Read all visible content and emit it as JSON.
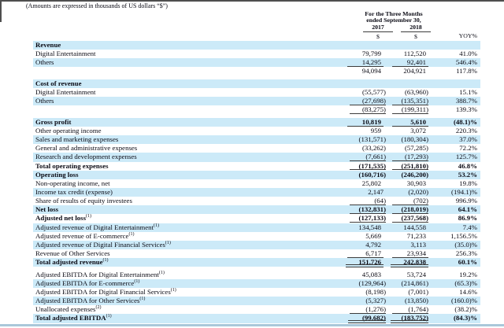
{
  "note": "(Amounts are expressed in thousands of US dollars “$”)",
  "colors": {
    "row_highlight": "#cceaf8",
    "text": "#0a0a14",
    "rule": "#3c3c3c",
    "bottom_strip": "#aac8da",
    "frame": "#4f4f4f"
  },
  "table": {
    "header": {
      "period_line1": "For the Three Months",
      "period_line2": "ended September 30,",
      "year_2017": "2017",
      "year_2018": "2018",
      "currency_2017": "$",
      "currency_2018": "$",
      "yoy": "YOY%"
    },
    "rows": [
      {
        "label": "Revenue",
        "bold": true,
        "bg": "blue"
      },
      {
        "label": "Digital Entertainment",
        "v2017": "79,799",
        "v2018": "112,520",
        "yoy": "41.0%",
        "bg": "white"
      },
      {
        "label": "Others",
        "v2017": "14,295",
        "v2018": "92,401",
        "yoy": "546.4%",
        "bg": "blue",
        "underline": "single"
      },
      {
        "label": "",
        "v2017": "94,094",
        "v2018": "204,921",
        "yoy": "117.8%",
        "bg": "white"
      },
      {
        "label": "Cost of revenue",
        "bold": true,
        "bg": "blue",
        "spacer_before": true
      },
      {
        "label": "Digital Entertainment",
        "v2017": "(55,577)",
        "v2018": "(63,960)",
        "yoy": "15.1%",
        "bg": "white"
      },
      {
        "label": "Others",
        "v2017": "(27,698)",
        "v2018": "(135,351)",
        "yoy": "388.7%",
        "bg": "blue",
        "underline": "single"
      },
      {
        "label": "",
        "v2017": "(83,275)",
        "v2018": "(199,311)",
        "yoy": "139.3%",
        "bg": "white",
        "underline": "single"
      },
      {
        "label": "Gross profit",
        "bold": true,
        "v2017": "10,819",
        "v2018": "5,610",
        "yoy": "(48.1)%",
        "bg": "blue",
        "underline": "single",
        "spacer_before": true
      },
      {
        "label": "Other operating income",
        "v2017": "959",
        "v2018": "3,072",
        "yoy": "220.3%",
        "bg": "white"
      },
      {
        "label": "Sales and marketing expenses",
        "v2017": "(131,571)",
        "v2018": "(180,304)",
        "yoy": "37.0%",
        "bg": "blue"
      },
      {
        "label": "General and administrative expenses",
        "v2017": "(33,262)",
        "v2018": "(57,285)",
        "yoy": "72.2%",
        "bg": "white"
      },
      {
        "label": "Research and development expenses",
        "v2017": "(7,661)",
        "v2018": "(17,293)",
        "yoy": "125.7%",
        "bg": "blue",
        "underline": "single"
      },
      {
        "label": "Total operating expenses",
        "bold": true,
        "v2017": "(171,535)",
        "v2018": "(251,810)",
        "yoy": "46.8%",
        "bg": "white",
        "underline": "single"
      },
      {
        "label": "Operating loss",
        "bold": true,
        "v2017": "(160,716)",
        "v2018": "(246,200)",
        "yoy": "53.2%",
        "bg": "blue"
      },
      {
        "label": "Non-operating income, net",
        "v2017": "25,802",
        "v2018": "30,903",
        "yoy": "19.8%",
        "bg": "white"
      },
      {
        "label": "Income tax credit (expense)",
        "v2017": "2,147",
        "v2018": "(2,020)",
        "yoy": "(194.1)%",
        "bg": "blue"
      },
      {
        "label": "Share of results of equity investees",
        "v2017": "(64)",
        "v2018": "(702)",
        "yoy": "996.9%",
        "bg": "white",
        "underline": "single"
      },
      {
        "label": "Net loss",
        "bold": true,
        "v2017": "(132,831)",
        "v2018": "(218,019)",
        "yoy": "64.1%",
        "bg": "blue",
        "underline": "single"
      },
      {
        "label": "Adjusted net loss",
        "sup": "(1)",
        "bold": true,
        "v2017": "(127,133)",
        "v2018": "(237,568)",
        "yoy": "86.9%",
        "bg": "white",
        "underline": "single"
      },
      {
        "label": "Adjusted revenue of Digital Entertainment",
        "sup": "(1)",
        "v2017": "134,548",
        "v2018": "144,558",
        "yoy": "7.4%",
        "bg": "blue"
      },
      {
        "label": "Adjusted revenue of E-commerce",
        "sup": "(1)",
        "v2017": "5,669",
        "v2018": "71,233",
        "yoy": "1,156.5%",
        "bg": "white"
      },
      {
        "label": "Adjusted revenue of Digital Financial Services",
        "sup": "(1)",
        "v2017": "4,792",
        "v2018": "3,113",
        "yoy": "(35.0)%",
        "bg": "blue"
      },
      {
        "label": "Revenue of Other Services",
        "v2017": "6,717",
        "v2018": "23,934",
        "yoy": "256.3%",
        "bg": "white",
        "underline": "single"
      },
      {
        "label": "Total adjusted revenue",
        "sup": "(1)",
        "bold": true,
        "v2017": "151,726",
        "v2018": "242,838",
        "yoy": "60.1%",
        "bg": "blue",
        "underline": "double"
      },
      {
        "label": "Adjusted EBITDA for Digital Entertainment",
        "sup": "(1)",
        "v2017": "45,083",
        "v2018": "53,724",
        "yoy": "19.2%",
        "bg": "white",
        "spacer_before": true
      },
      {
        "label": "Adjusted EBITDA for E-commerce",
        "sup": "(1)",
        "v2017": "(129,964)",
        "v2018": "(214,861)",
        "yoy": "(65.3)%",
        "bg": "blue"
      },
      {
        "label": "Adjusted EBITDA for Digital Financial Services",
        "sup": "(1)",
        "v2017": "(8,198)",
        "v2018": "(7,001)",
        "yoy": "14.6%",
        "bg": "white"
      },
      {
        "label": "Adjusted EBITDA for Other Services",
        "sup": "(1)",
        "v2017": "(5,327)",
        "v2018": "(13,850)",
        "yoy": "(160.0)%",
        "bg": "blue"
      },
      {
        "label": "Unallocated expenses",
        "sup": "(2)",
        "v2017": "(1,276)",
        "v2018": "(1,764)",
        "yoy": "(38.2)%",
        "bg": "white",
        "underline": "single"
      },
      {
        "label": "Total adjusted EBITDA",
        "sup": "(1)",
        "bold": true,
        "v2017": "(99,682)",
        "v2018": "(183,752)",
        "yoy": "(84.3)%",
        "bg": "blue",
        "underline": "double"
      }
    ]
  }
}
